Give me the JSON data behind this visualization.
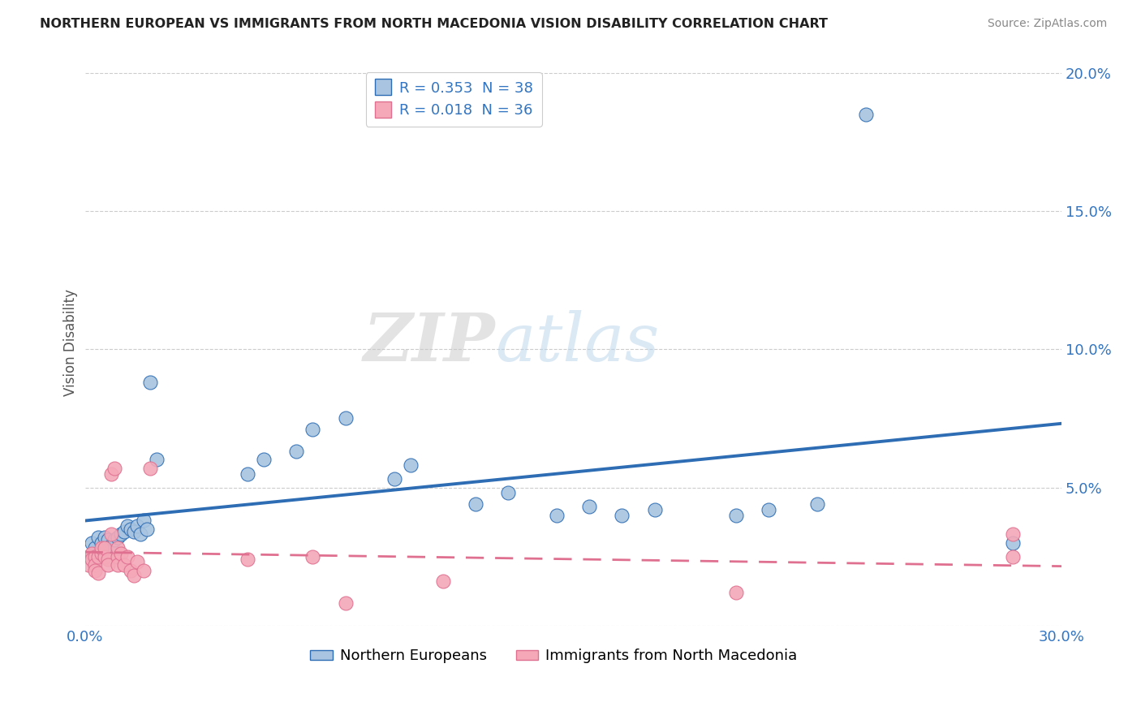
{
  "title": "NORTHERN EUROPEAN VS IMMIGRANTS FROM NORTH MACEDONIA VISION DISABILITY CORRELATION CHART",
  "source": "Source: ZipAtlas.com",
  "ylabel": "Vision Disability",
  "xlim": [
    0,
    0.3
  ],
  "ylim": [
    0,
    0.205
  ],
  "yticks": [
    0.0,
    0.05,
    0.1,
    0.15,
    0.2
  ],
  "ytick_labels": [
    "",
    "5.0%",
    "10.0%",
    "15.0%",
    "20.0%"
  ],
  "xticks": [
    0.0,
    0.05,
    0.1,
    0.15,
    0.2,
    0.25,
    0.3
  ],
  "xtick_labels": [
    "0.0%",
    "",
    "",
    "",
    "",
    "",
    "30.0%"
  ],
  "blue_R": 0.353,
  "blue_N": 38,
  "pink_R": 0.018,
  "pink_N": 36,
  "blue_color": "#a8c4e0",
  "pink_color": "#f4a8b8",
  "blue_line_color": "#2e6db4",
  "pink_line_color": "#e07090",
  "legend_label_blue": "Northern Europeans",
  "legend_label_pink": "Immigrants from North Macedonia",
  "watermark_zip": "ZIP",
  "watermark_atlas": "atlas",
  "blue_x": [
    0.002,
    0.003,
    0.004,
    0.005,
    0.006,
    0.007,
    0.008,
    0.009,
    0.01,
    0.011,
    0.012,
    0.013,
    0.014,
    0.015,
    0.016,
    0.017,
    0.018,
    0.019,
    0.02,
    0.022,
    0.05,
    0.055,
    0.065,
    0.07,
    0.08,
    0.095,
    0.1,
    0.12,
    0.13,
    0.145,
    0.155,
    0.165,
    0.175,
    0.2,
    0.21,
    0.225,
    0.24,
    0.285
  ],
  "blue_y": [
    0.03,
    0.028,
    0.032,
    0.03,
    0.032,
    0.031,
    0.029,
    0.031,
    0.032,
    0.033,
    0.034,
    0.036,
    0.035,
    0.034,
    0.036,
    0.033,
    0.038,
    0.035,
    0.088,
    0.06,
    0.055,
    0.06,
    0.063,
    0.071,
    0.075,
    0.053,
    0.058,
    0.044,
    0.048,
    0.04,
    0.043,
    0.04,
    0.042,
    0.04,
    0.042,
    0.044,
    0.185,
    0.03
  ],
  "pink_x": [
    0.001,
    0.001,
    0.002,
    0.002,
    0.003,
    0.003,
    0.003,
    0.004,
    0.004,
    0.005,
    0.005,
    0.006,
    0.006,
    0.007,
    0.007,
    0.008,
    0.008,
    0.009,
    0.01,
    0.01,
    0.01,
    0.011,
    0.012,
    0.013,
    0.014,
    0.015,
    0.016,
    0.018,
    0.02,
    0.05,
    0.07,
    0.08,
    0.11,
    0.2,
    0.285,
    0.285
  ],
  "pink_y": [
    0.025,
    0.022,
    0.026,
    0.024,
    0.025,
    0.022,
    0.02,
    0.025,
    0.019,
    0.026,
    0.028,
    0.025,
    0.028,
    0.024,
    0.022,
    0.033,
    0.055,
    0.057,
    0.025,
    0.028,
    0.022,
    0.026,
    0.022,
    0.025,
    0.02,
    0.018,
    0.023,
    0.02,
    0.057,
    0.024,
    0.025,
    0.008,
    0.016,
    0.012,
    0.033,
    0.025
  ]
}
